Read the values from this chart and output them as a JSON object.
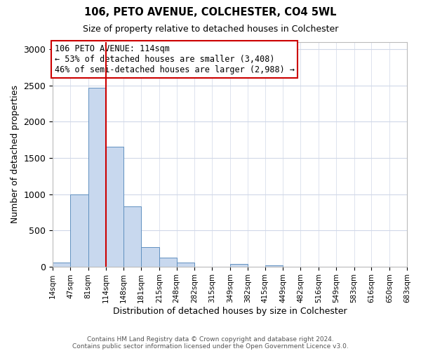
{
  "title": "106, PETO AVENUE, COLCHESTER, CO4 5WL",
  "subtitle": "Size of property relative to detached houses in Colchester",
  "xlabel": "Distribution of detached houses by size in Colchester",
  "ylabel": "Number of detached properties",
  "annotation_line1": "106 PETO AVENUE: 114sqm",
  "annotation_line2": "← 53% of detached houses are smaller (3,408)",
  "annotation_line3": "46% of semi-detached houses are larger (2,988) →",
  "bar_edges": [
    14,
    47,
    81,
    114,
    148,
    181,
    215,
    248,
    282,
    315,
    349,
    382,
    415,
    449,
    482,
    516,
    549,
    583,
    616,
    650,
    683
  ],
  "bar_heights": [
    50,
    1000,
    2470,
    1650,
    830,
    265,
    120,
    50,
    0,
    0,
    35,
    0,
    20,
    0,
    0,
    0,
    0,
    0,
    0,
    0
  ],
  "bar_color": "#c8d8ee",
  "bar_edgecolor": "#6090c0",
  "vline_color": "#cc0000",
  "vline_x": 114,
  "box_color": "#cc0000",
  "ylim": [
    0,
    3100
  ],
  "yticks": [
    0,
    500,
    1000,
    1500,
    2000,
    2500,
    3000
  ],
  "footer_line1": "Contains HM Land Registry data © Crown copyright and database right 2024.",
  "footer_line2": "Contains public sector information licensed under the Open Government Licence v3.0.",
  "background_color": "#ffffff",
  "plot_background": "#ffffff",
  "figsize": [
    6.0,
    5.0
  ],
  "dpi": 100
}
